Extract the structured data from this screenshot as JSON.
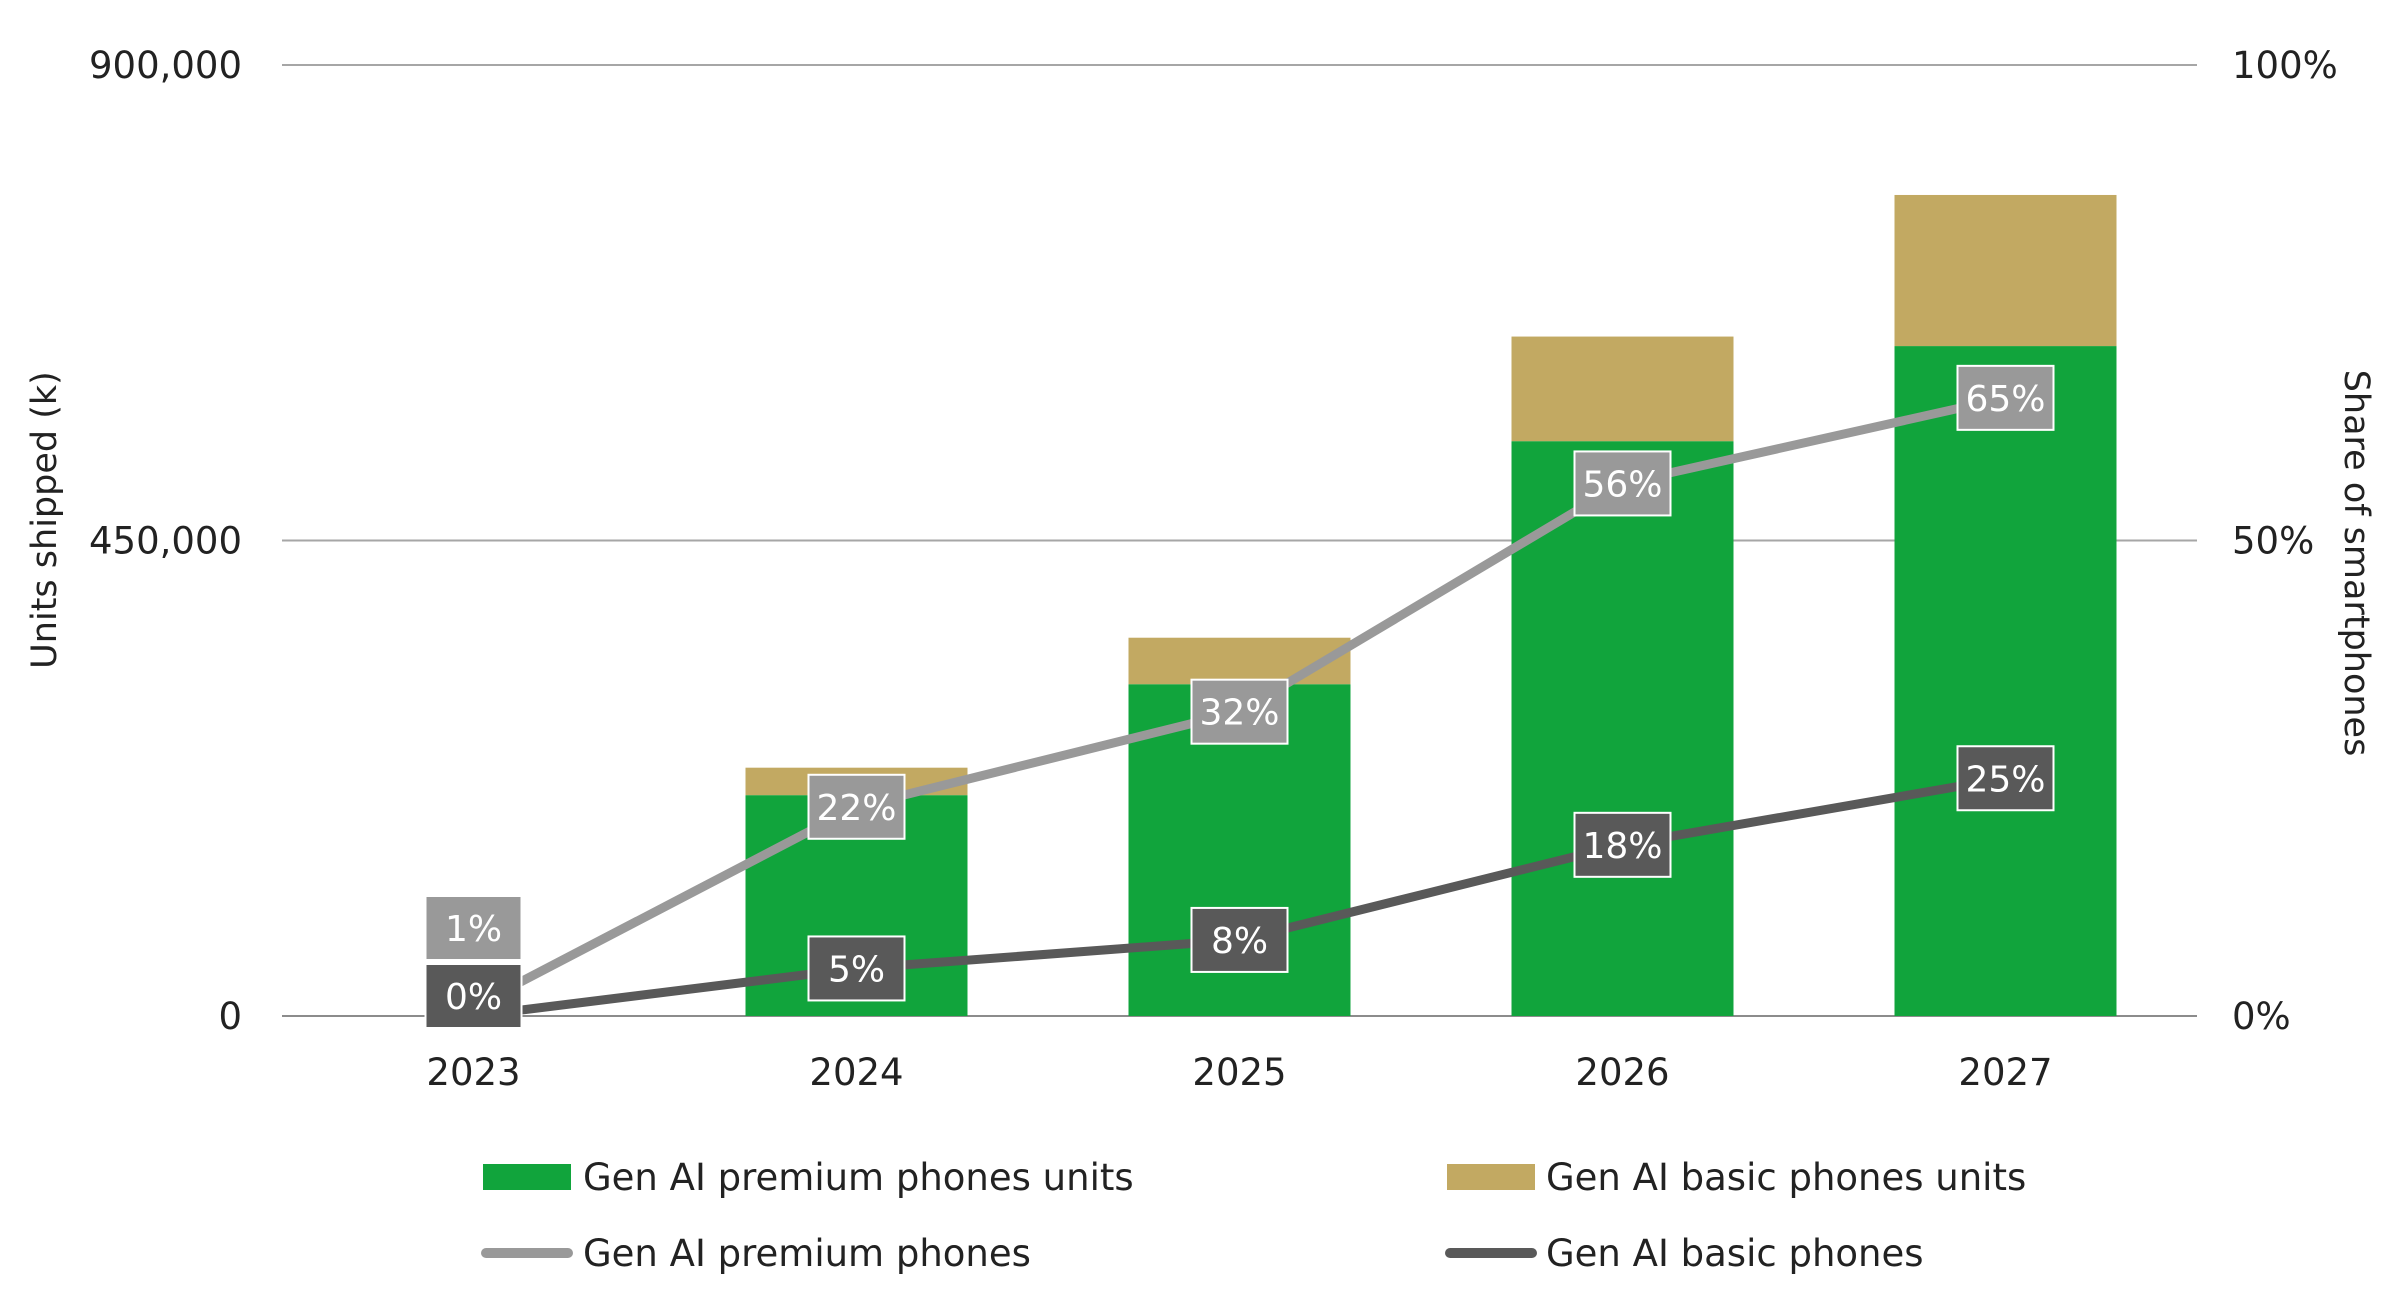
{
  "chart_data": {
    "type": "bar",
    "stacked": true,
    "categories": [
      "2023",
      "2024",
      "2025",
      "2026",
      "2027"
    ],
    "y_left": {
      "label": "Units shipped (k)",
      "ticks": [
        "0",
        "450,000",
        "900,000"
      ],
      "tick_values": [
        0,
        450000,
        900000
      ],
      "ylim": [
        0,
        900000
      ]
    },
    "y_right": {
      "label": "Share of smartphones",
      "ticks": [
        "0%",
        "50%",
        "100%"
      ],
      "tick_values": [
        0,
        50,
        100
      ],
      "ylim": [
        0,
        100
      ]
    },
    "grid": true,
    "legend_position": "bottom",
    "bar_series": [
      {
        "name": "Gen AI premium phones units",
        "color": "#11a43c",
        "values": [
          0,
          209000,
          314000,
          544000,
          634000
        ]
      },
      {
        "name": "Gen AI basic phones units",
        "color": "#c2a962",
        "values": [
          0,
          26000,
          44000,
          99000,
          143000
        ]
      }
    ],
    "line_series": [
      {
        "name": "Gen AI premium phones",
        "color": "#999999",
        "axis": "right",
        "values": [
          1,
          22,
          32,
          56,
          65
        ],
        "labels": [
          "1%",
          "22%",
          "32%",
          "56%",
          "65%"
        ]
      },
      {
        "name": "Gen AI basic phones",
        "color": "#595959",
        "axis": "right",
        "values": [
          0,
          5,
          8,
          18,
          25
        ],
        "labels": [
          "0%",
          "5%",
          "8%",
          "18%",
          "25%"
        ]
      }
    ]
  }
}
